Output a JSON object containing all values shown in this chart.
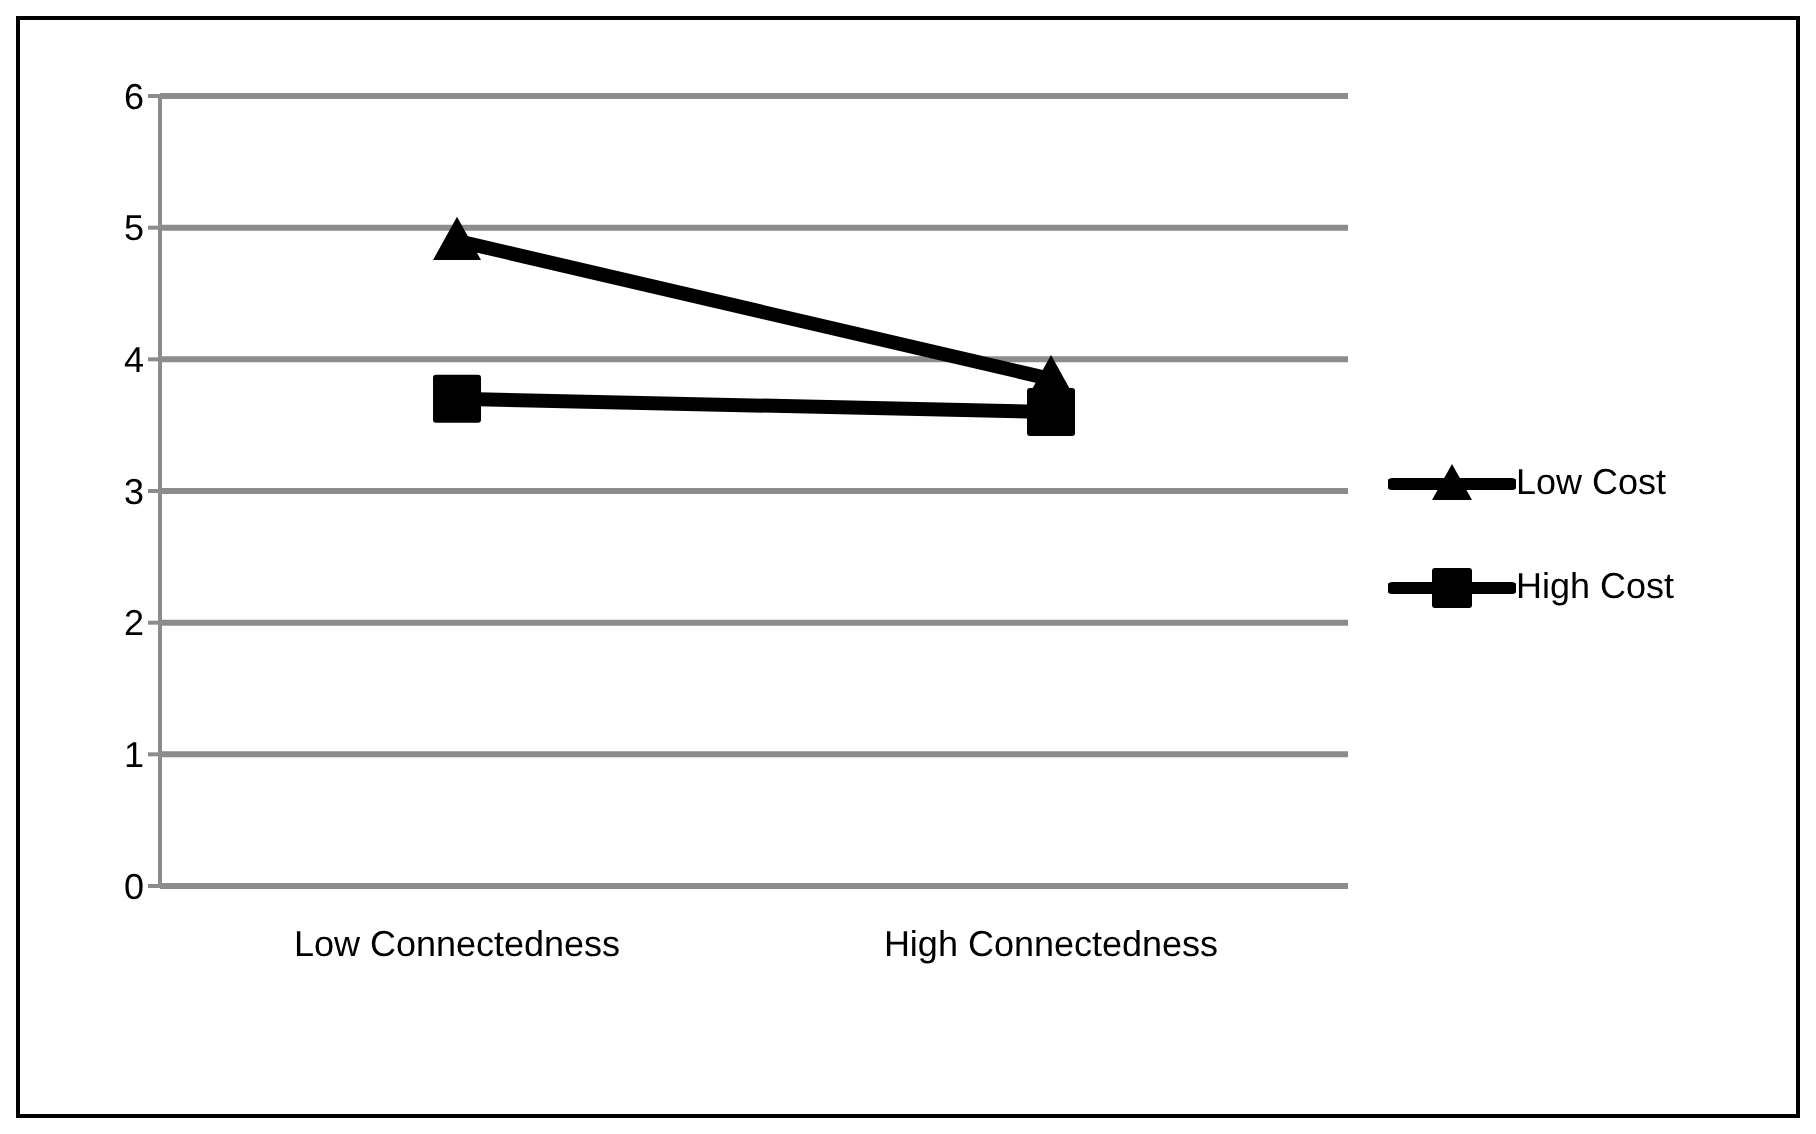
{
  "chart_data": {
    "type": "line",
    "categories": [
      "Low Connectedness",
      "High Connectedness"
    ],
    "series": [
      {
        "name": "Low Cost",
        "color": "#000000",
        "marker": "triangle",
        "values": [
          4.9,
          3.85
        ]
      },
      {
        "name": "High Cost",
        "color": "#000000",
        "marker": "square",
        "values": [
          3.7,
          3.6
        ]
      }
    ],
    "ylim": [
      0,
      6
    ],
    "yticks": [
      0,
      1,
      2,
      3,
      4,
      5,
      6
    ],
    "grid": "y",
    "legend": "right"
  }
}
